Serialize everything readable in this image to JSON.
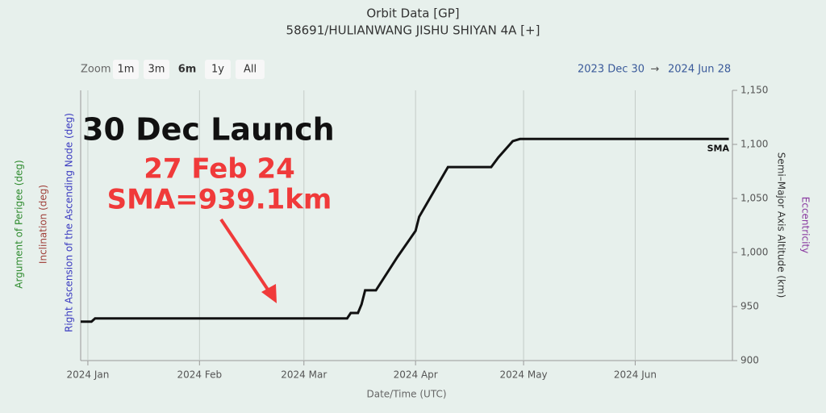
{
  "chart_data": {
    "type": "line",
    "title": "Orbit Data [GP]",
    "subtitle": "58691/HULIANWANG JISHU SHIYAN 4A [+]",
    "zoom_label": "Zoom",
    "zoom_options": [
      "1m",
      "3m",
      "6m",
      "1y",
      "All"
    ],
    "zoom_selected": "6m",
    "range_from": "2023 Dec 30",
    "range_to": "2024 Jun 28",
    "x_label": "Date/Time (UTC)",
    "y_label": "Semi–Major Axis Altitude (km)",
    "left_axis_titles": [
      {
        "text": "Argument of Perigee (deg)",
        "color": "#2e8b2e"
      },
      {
        "text": "Inclination (deg)",
        "color": "#a0403a"
      },
      {
        "text": "Right Ascension of the Ascending Node (deg)",
        "color": "#3a3ac0"
      }
    ],
    "right_axis_title2": {
      "text": "Eccentricity",
      "color": "#8a3aa0"
    },
    "annotations": [
      "30 Dec Launch",
      "27 Feb 24",
      "SMA=939.1km"
    ],
    "x": [
      "2023-12-30",
      "2024-01-02",
      "2024-01-03",
      "2024-03-13",
      "2024-03-14",
      "2024-03-16",
      "2024-03-17",
      "2024-03-18",
      "2024-03-21",
      "2024-03-27",
      "2024-04-01",
      "2024-04-02",
      "2024-04-10",
      "2024-04-22",
      "2024-04-24",
      "2024-04-28",
      "2024-04-30",
      "2024-06-27"
    ],
    "series": [
      {
        "name": "SMA",
        "color": "#111111",
        "axis": "y2",
        "values": [
          936,
          936,
          939,
          939,
          944,
          944,
          952,
          965,
          965,
          996,
          1020,
          1033,
          1079,
          1079,
          1088,
          1103,
          1105,
          1105
        ]
      }
    ],
    "xlim": [
      "2023-12-30",
      "2024-06-28"
    ],
    "xticks": [
      {
        "value": "2024-01-01",
        "label": "2024 Jan"
      },
      {
        "value": "2024-02-01",
        "label": "2024 Feb"
      },
      {
        "value": "2024-03-01",
        "label": "2024 Mar"
      },
      {
        "value": "2024-04-01",
        "label": "2024 Apr"
      },
      {
        "value": "2024-05-01",
        "label": "2024 May"
      },
      {
        "value": "2024-06-01",
        "label": "2024 Jun"
      }
    ],
    "y2lim": [
      900,
      1150
    ],
    "y2ticks": [
      900,
      950,
      {
        "value": 1000,
        "label": "1,000"
      },
      {
        "value": 1050,
        "label": "1,050"
      },
      {
        "value": 1100,
        "label": "1,100"
      },
      {
        "value": 1150,
        "label": "1,150"
      }
    ],
    "grid": true
  }
}
